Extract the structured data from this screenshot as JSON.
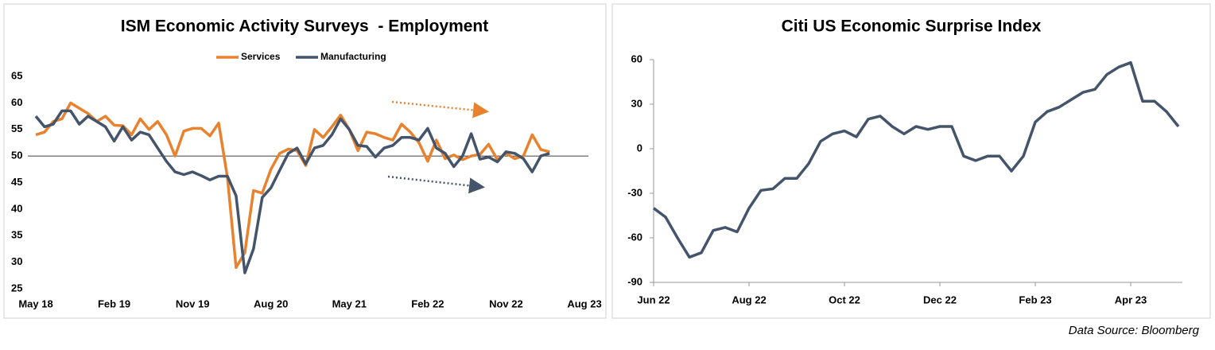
{
  "chart_data": [
    {
      "type": "line",
      "title": "ISM Economic Activity Surveys  - Employment",
      "categories": [
        "May 18",
        null,
        null,
        null,
        null,
        null,
        null,
        null,
        null,
        "Feb 19",
        null,
        null,
        null,
        null,
        null,
        null,
        null,
        null,
        "Nov 19",
        null,
        null,
        null,
        null,
        null,
        null,
        null,
        null,
        "Aug 20",
        null,
        null,
        null,
        null,
        null,
        null,
        null,
        null,
        "May 21",
        null,
        null,
        null,
        null,
        null,
        null,
        null,
        null,
        "Feb 22",
        null,
        null,
        null,
        null,
        null,
        null,
        null,
        null,
        "Nov 22",
        null,
        null,
        null,
        null,
        null,
        null,
        null,
        null,
        "Aug 23"
      ],
      "series": [
        {
          "name": "Services",
          "color": "#e8822e",
          "values": [
            54,
            54.5,
            56.5,
            57,
            60,
            59,
            58,
            56.5,
            57.5,
            55.8,
            55.7,
            54,
            57,
            55,
            56.5,
            54,
            50,
            54.7,
            55.2,
            55.2,
            53.8,
            56.2,
            46,
            29,
            31.8,
            43.5,
            43,
            47.5,
            50.5,
            51.3,
            51,
            48.2,
            55,
            53.5,
            55.5,
            57.7,
            55,
            51,
            54.5,
            54.2,
            53.5,
            53,
            56,
            54.5,
            52.5,
            49,
            53,
            49.5,
            50.2,
            49.3,
            50,
            50.3,
            52.2,
            49.3,
            50.5,
            49.5,
            50,
            54,
            51.2,
            50.8,
            null,
            null,
            null,
            null
          ]
        },
        {
          "name": "Manufacturing",
          "color": "#44546a",
          "values": [
            57.5,
            55.5,
            56,
            58.5,
            58.5,
            56,
            57.5,
            56.5,
            55.5,
            52.8,
            55.5,
            53,
            54.5,
            54,
            51.5,
            49,
            47,
            46.5,
            47,
            46.3,
            45.5,
            46.2,
            46.2,
            42.5,
            28,
            32.5,
            42.2,
            44,
            47.3,
            50.5,
            51.5,
            48.5,
            51.5,
            52,
            54,
            57,
            55,
            52,
            51.8,
            49.8,
            51.5,
            52,
            53.5,
            53.5,
            53,
            55.2,
            51.5,
            50.5,
            48,
            50,
            54.2,
            49.4,
            49.8,
            48.9,
            50.8,
            50.5,
            49.5,
            47,
            50,
            50.5,
            null,
            null,
            null,
            null
          ]
        }
      ],
      "ylim": [
        25,
        65
      ],
      "yticks": [
        25,
        30,
        35,
        40,
        45,
        50,
        55,
        60,
        65
      ],
      "reference_line": 50,
      "legend": "top",
      "axis_lines": false
    },
    {
      "type": "line",
      "title": "Citi US Economic Surprise Index",
      "categories": [
        "Jun 22",
        null,
        null,
        null,
        null,
        null,
        null,
        null,
        "Aug 22",
        null,
        null,
        null,
        null,
        null,
        null,
        null,
        "Oct 22",
        null,
        null,
        null,
        null,
        null,
        null,
        null,
        "Dec 22",
        null,
        null,
        null,
        null,
        null,
        null,
        null,
        "Feb 23",
        null,
        null,
        null,
        null,
        null,
        null,
        null,
        "Apr 23",
        null,
        null,
        null,
        null
      ],
      "series": [
        {
          "color": "#44546a",
          "values": [
            -40,
            -46,
            -60,
            -73,
            -70,
            -55,
            -53,
            -56,
            -40,
            -28,
            -27,
            -20,
            -20,
            -10,
            5,
            10,
            12,
            8,
            20,
            22,
            15,
            10,
            15,
            13,
            15,
            15,
            -5,
            -8,
            -5,
            -5,
            -15,
            -5,
            18,
            25,
            28,
            33,
            38,
            40,
            50,
            55,
            58,
            32,
            32,
            25,
            15
          ]
        }
      ],
      "ylim": [
        -90,
        60
      ],
      "yticks": [
        -90,
        -60,
        -30,
        0,
        30,
        60
      ],
      "axis_lines": true
    }
  ],
  "source": "Data Source: Bloomberg"
}
